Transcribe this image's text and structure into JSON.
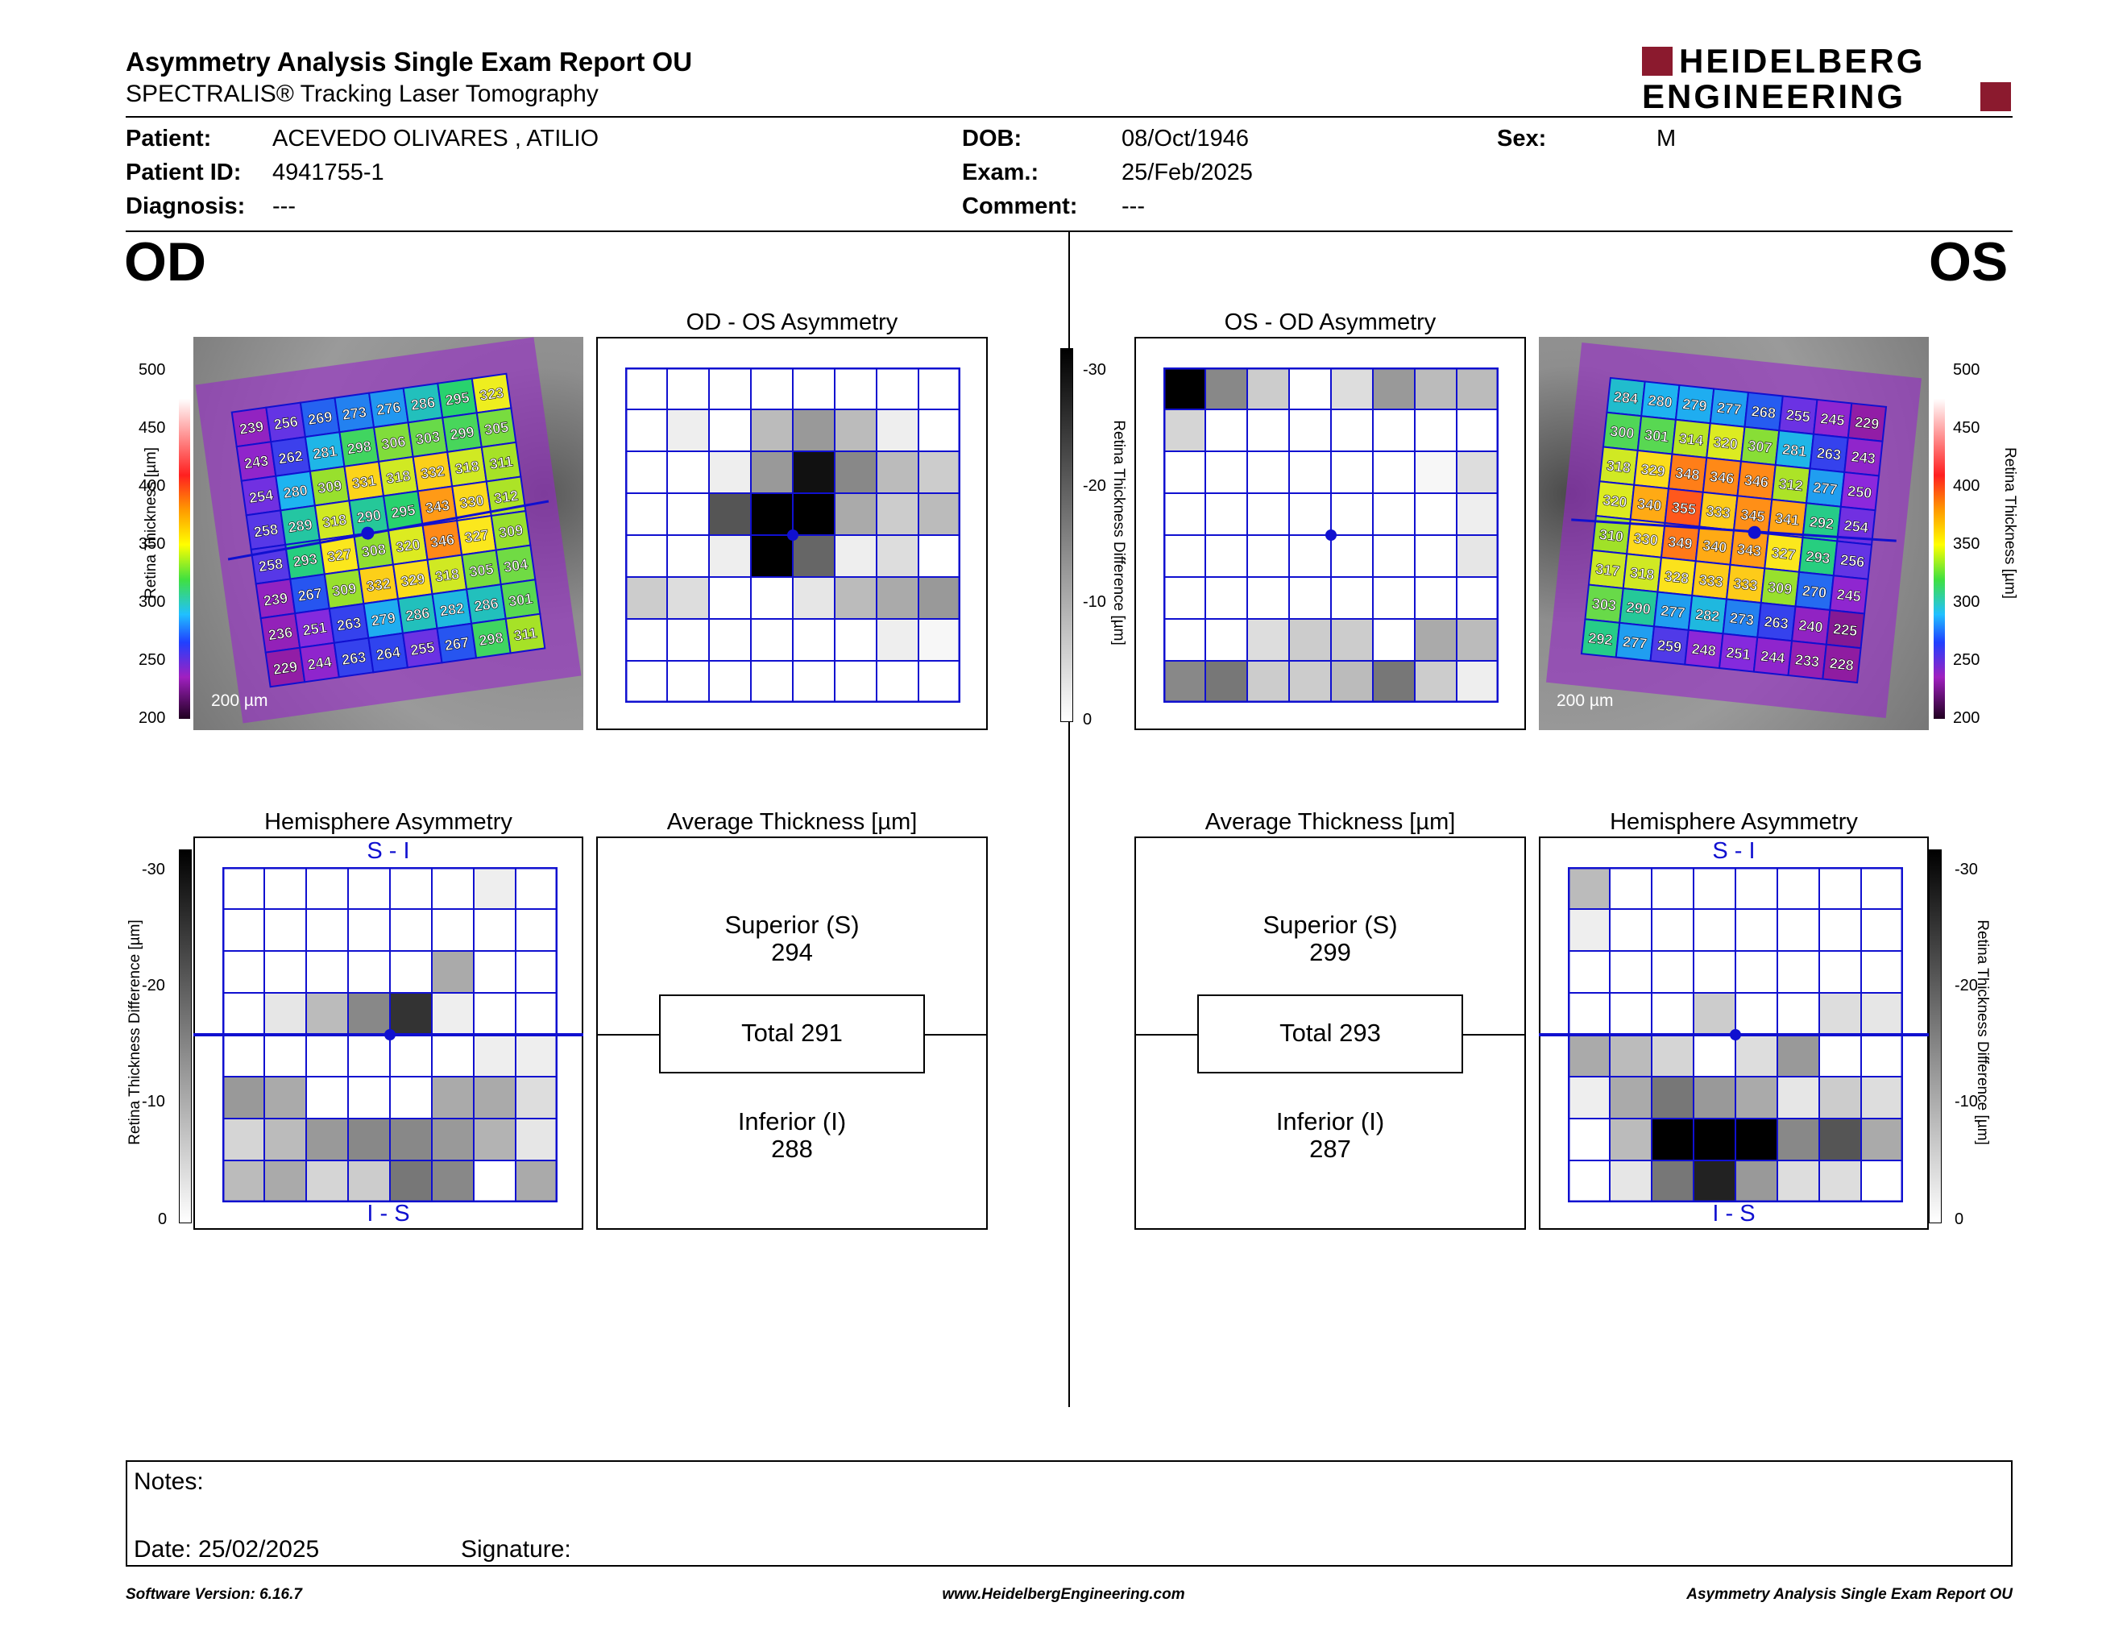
{
  "header": {
    "title": "Asymmetry Analysis Single Exam Report OU",
    "subtitle": "SPECTRALIS® Tracking Laser Tomography",
    "logo_line1": "HEIDELBERG",
    "logo_line2": "ENGINEERING",
    "brand_color": "#8b1a2e"
  },
  "patient": {
    "patient_label": "Patient:",
    "patient_value": "ACEVEDO OLIVARES , ATILIO",
    "id_label": "Patient ID:",
    "id_value": "4941755-1",
    "diagnosis_label": "Diagnosis:",
    "diagnosis_value": "---",
    "dob_label": "DOB:",
    "dob_value": "08/Oct/1946",
    "exam_label": "Exam.:",
    "exam_value": "25/Feb/2025",
    "comment_label": "Comment:",
    "comment_value": "---",
    "sex_label": "Sex:",
    "sex_value": "M"
  },
  "od": {
    "eye_label": "OD",
    "asym_title": "OD - OS Asymmetry",
    "hemi_title": "Hemisphere Asymmetry",
    "hemi_top": "S - I",
    "hemi_bottom": "I - S",
    "avg_title": "Average Thickness [µm]",
    "superior_label": "Superior (S)",
    "superior_value": "294",
    "total_label": "Total 291",
    "inferior_label": "Inferior (I)",
    "inferior_value": "288",
    "scale": "200 µm",
    "thickness": [
      [
        239,
        256,
        269,
        273,
        276,
        286,
        295,
        323
      ],
      [
        243,
        262,
        281,
        298,
        306,
        303,
        299,
        305
      ],
      [
        254,
        280,
        309,
        331,
        318,
        332,
        318,
        311
      ],
      [
        258,
        289,
        318,
        290,
        295,
        343,
        330,
        312
      ],
      [
        258,
        293,
        327,
        308,
        320,
        346,
        327,
        309
      ],
      [
        239,
        267,
        309,
        332,
        329,
        318,
        305,
        304
      ],
      [
        236,
        251,
        263,
        279,
        286,
        282,
        286,
        301
      ],
      [
        229,
        244,
        263,
        264,
        255,
        267,
        298,
        311
      ]
    ],
    "asym_grid": [
      [
        0,
        0,
        0,
        0,
        0,
        0,
        0,
        0
      ],
      [
        0,
        2,
        0,
        8,
        12,
        8,
        2,
        0
      ],
      [
        0,
        0,
        2,
        12,
        28,
        14,
        8,
        6
      ],
      [
        0,
        0,
        20,
        30,
        30,
        10,
        6,
        8
      ],
      [
        0,
        0,
        2,
        30,
        18,
        2,
        4,
        0
      ],
      [
        6,
        4,
        0,
        0,
        3,
        8,
        10,
        12
      ],
      [
        0,
        0,
        0,
        0,
        0,
        0,
        2,
        1
      ],
      [
        0,
        0,
        0,
        0,
        0,
        0,
        0,
        0
      ]
    ],
    "hemi_grid": [
      [
        0,
        0,
        0,
        0,
        0,
        0,
        2,
        0
      ],
      [
        0,
        0,
        0,
        0,
        0,
        0,
        0,
        0
      ],
      [
        0,
        0,
        0,
        0,
        0,
        10,
        0,
        0
      ],
      [
        0,
        3,
        8,
        14,
        24,
        2,
        0,
        0
      ],
      [
        0,
        0,
        0,
        0,
        0,
        0,
        2,
        2
      ],
      [
        12,
        10,
        0,
        0,
        0,
        10,
        10,
        4
      ],
      [
        5,
        8,
        12,
        14,
        14,
        12,
        9,
        3
      ],
      [
        8,
        10,
        5,
        6,
        16,
        14,
        0,
        10
      ]
    ]
  },
  "os": {
    "eye_label": "OS",
    "asym_title": "OS - OD Asymmetry",
    "hemi_title": "Hemisphere Asymmetry",
    "hemi_top": "S - I",
    "hemi_bottom": "I - S",
    "avg_title": "Average Thickness [µm]",
    "superior_label": "Superior (S)",
    "superior_value": "299",
    "total_label": "Total 293",
    "inferior_label": "Inferior (I)",
    "inferior_value": "287",
    "scale": "200 µm",
    "thickness": [
      [
        284,
        280,
        279,
        277,
        268,
        255,
        245,
        229
      ],
      [
        300,
        301,
        314,
        320,
        307,
        281,
        263,
        243
      ],
      [
        318,
        329,
        348,
        346,
        346,
        312,
        277,
        250
      ],
      [
        320,
        340,
        355,
        333,
        345,
        341,
        292,
        254
      ],
      [
        310,
        330,
        349,
        340,
        343,
        327,
        293,
        256
      ],
      [
        317,
        318,
        328,
        333,
        333,
        309,
        270,
        245
      ],
      [
        303,
        290,
        277,
        282,
        273,
        263,
        240,
        225
      ],
      [
        292,
        277,
        259,
        248,
        251,
        244,
        233,
        228
      ]
    ],
    "asym_grid": [
      [
        30,
        14,
        6,
        0,
        4,
        12,
        8,
        8
      ],
      [
        5,
        0,
        0,
        0,
        0,
        0,
        0,
        0
      ],
      [
        0,
        0,
        0,
        0,
        0,
        0,
        1,
        4
      ],
      [
        0,
        0,
        0,
        0,
        0,
        0,
        0,
        2
      ],
      [
        0,
        0,
        0,
        0,
        0,
        0,
        0,
        3
      ],
      [
        0,
        0,
        0,
        0,
        0,
        0,
        0,
        0
      ],
      [
        0,
        0,
        4,
        6,
        6,
        0,
        10,
        8
      ],
      [
        14,
        16,
        6,
        6,
        8,
        16,
        6,
        2
      ]
    ],
    "hemi_grid": [
      [
        8,
        0,
        0,
        0,
        0,
        0,
        0,
        0
      ],
      [
        2,
        0,
        0,
        0,
        0,
        0,
        0,
        0
      ],
      [
        0,
        0,
        0,
        0,
        0,
        0,
        0,
        0
      ],
      [
        0,
        0,
        0,
        6,
        0,
        0,
        4,
        3
      ],
      [
        10,
        8,
        5,
        0,
        4,
        12,
        0,
        0
      ],
      [
        2,
        10,
        16,
        12,
        10,
        3,
        6,
        4
      ],
      [
        0,
        8,
        30,
        30,
        30,
        14,
        20,
        10
      ],
      [
        0,
        3,
        16,
        26,
        12,
        4,
        4,
        0
      ]
    ]
  },
  "thickness_scale": {
    "axis_label": "Retina Thickness [µm]",
    "ticks": [
      "500",
      "450",
      "400",
      "350",
      "300",
      "250",
      "200"
    ]
  },
  "difference_scale": {
    "axis_label": "Retina Thickness Difference [µm]",
    "ticks": [
      "-30",
      "-20",
      "-10",
      "0"
    ]
  },
  "notes": {
    "notes_label": "Notes:",
    "date_label": "Date: 25/02/2025",
    "signature_label": "Signature:"
  },
  "footer": {
    "software": "Software Version: 6.16.7",
    "website": "www.HeidelbergEngineering.com",
    "report_name": "Asymmetry Analysis Single Exam Report OU"
  }
}
